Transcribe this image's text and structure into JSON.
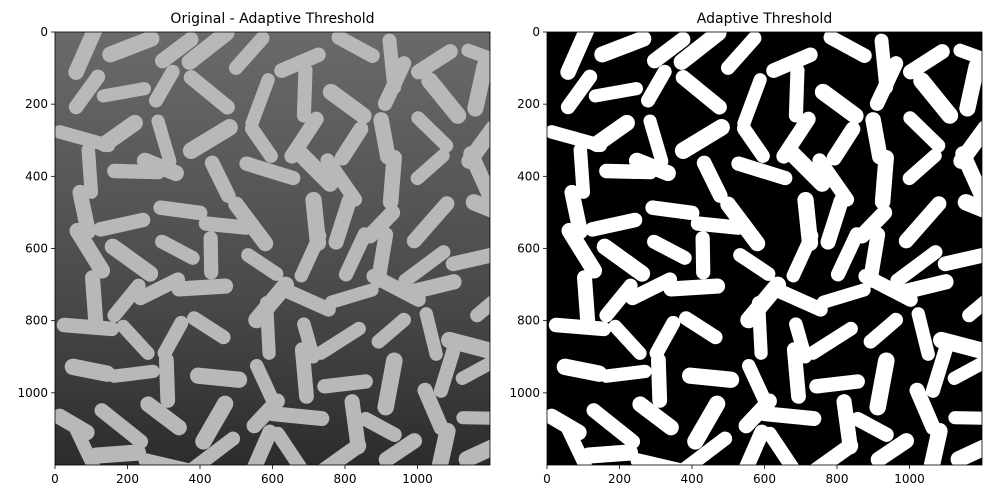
{
  "chart_data": [
    {
      "type": "image",
      "title": "Original - Adaptive Threshold",
      "xlim": [
        0,
        1200
      ],
      "ylim": [
        1200,
        0
      ],
      "xticks": [
        0,
        200,
        400,
        600,
        800,
        1000
      ],
      "yticks": [
        0,
        200,
        400,
        600,
        800,
        1000
      ]
    },
    {
      "type": "image",
      "title": "Adaptive Threshold",
      "xlim": [
        0,
        1200
      ],
      "ylim": [
        1200,
        0
      ],
      "xticks": [
        0,
        200,
        400,
        600,
        800,
        1000
      ],
      "yticks": [
        0,
        200,
        400,
        600,
        800,
        1000
      ]
    }
  ]
}
